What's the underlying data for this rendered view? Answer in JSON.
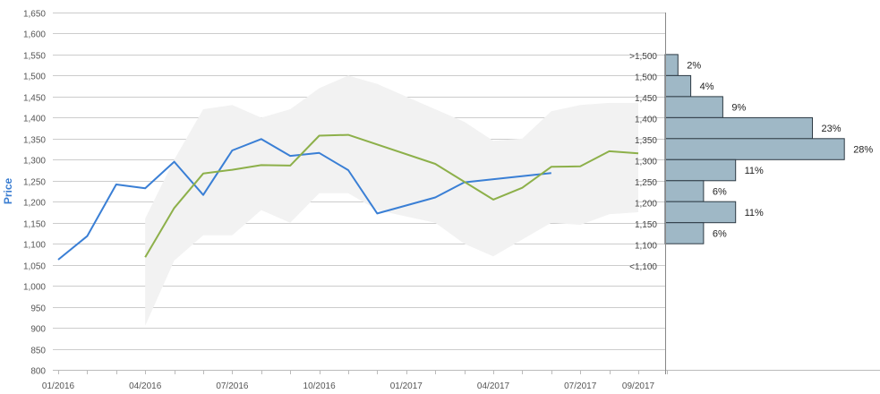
{
  "chart_data": {
    "type": "line",
    "title": "",
    "xlabel": "",
    "ylabel": "Price",
    "ylim": [
      800,
      1650
    ],
    "y_ticks": [
      "800",
      "850",
      "900",
      "950",
      "1,000",
      "1,050",
      "1,100",
      "1,150",
      "1,200",
      "1,250",
      "1,300",
      "1,350",
      "1,400",
      "1,450",
      "1,500",
      "1,550",
      "1,600",
      "1,650"
    ],
    "x_ticks": [
      "01/2016",
      "04/2016",
      "07/2016",
      "10/2016",
      "01/2017",
      "04/2017",
      "07/2017",
      "09/2017"
    ],
    "grid": true,
    "colors": {
      "blue": "#3a7fd5",
      "green": "#8db04a",
      "band": "#f2f2f2",
      "bars": "#9fb8c6",
      "bar_stroke": "#2d3a44"
    },
    "series": [
      {
        "x": [
          "01/2016",
          "02/2016",
          "03/2016",
          "04/2016",
          "05/2016",
          "06/2016",
          "07/2016",
          "08/2016",
          "09/2016",
          "10/2016",
          "11/2016",
          "12/2016",
          "02/2017",
          "03/2017",
          "06/2017"
        ],
        "values": [
          1062,
          1118,
          1241,
          1232,
          1295,
          1216,
          1322,
          1349,
          1309,
          1316,
          1275,
          1172,
          1210,
          1246,
          1268
        ]
      },
      {
        "x": [
          "04/2016",
          "05/2016",
          "06/2016",
          "07/2016",
          "08/2016",
          "09/2016",
          "10/2016",
          "11/2016",
          "02/2017",
          "04/2017",
          "05/2017",
          "06/2017",
          "07/2017",
          "08/2017",
          "09/2017"
        ],
        "values": [
          1068,
          1185,
          1267,
          1276,
          1287,
          1286,
          1357,
          1359,
          1290,
          1205,
          1233,
          1283,
          1284,
          1320,
          1315
        ]
      }
    ],
    "range_band": {
      "x": [
        "04/2016",
        "05/2016",
        "06/2016",
        "07/2016",
        "08/2016",
        "09/2016",
        "10/2016",
        "11/2016",
        "12/2016",
        "01/2017",
        "02/2017",
        "03/2017",
        "04/2017",
        "05/2017",
        "06/2017",
        "07/2017",
        "08/2017",
        "09/2017"
      ],
      "upper": [
        1160,
        1300,
        1420,
        1430,
        1400,
        1420,
        1470,
        1500,
        1480,
        1450,
        1420,
        1390,
        1345,
        1350,
        1415,
        1430,
        1435,
        1435
      ],
      "lower": [
        905,
        1060,
        1120,
        1120,
        1180,
        1150,
        1220,
        1220,
        1180,
        1165,
        1150,
        1100,
        1070,
        1110,
        1150,
        1145,
        1170,
        1175
      ]
    },
    "distribution": {
      "bins": [
        {
          "label": ">1,500",
          "value": 1525,
          "pct": "2%",
          "share": 2
        },
        {
          "label": "1,500",
          "value": 1475,
          "pct": "4%",
          "share": 4
        },
        {
          "label": "1,450",
          "value": 1425,
          "pct": "9%",
          "share": 9
        },
        {
          "label": "1,400",
          "value": 1375,
          "pct": "23%",
          "share": 23
        },
        {
          "label": "1,350",
          "value": 1325,
          "pct": "28%",
          "share": 28
        },
        {
          "label": "1,300",
          "value": 1275,
          "pct": "11%",
          "share": 11
        },
        {
          "label": "1,250",
          "value": 1225,
          "pct": "6%",
          "share": 6
        },
        {
          "label": "1,200",
          "value": 1175,
          "pct": "11%",
          "share": 11
        },
        {
          "label": "1,150",
          "value": 1125,
          "pct": "6%",
          "share": 6
        },
        {
          "label": "1,100",
          "value": null,
          "pct": "",
          "share": 0
        },
        {
          "label": "<1,100",
          "value": null,
          "pct": "",
          "share": 0
        }
      ]
    }
  }
}
